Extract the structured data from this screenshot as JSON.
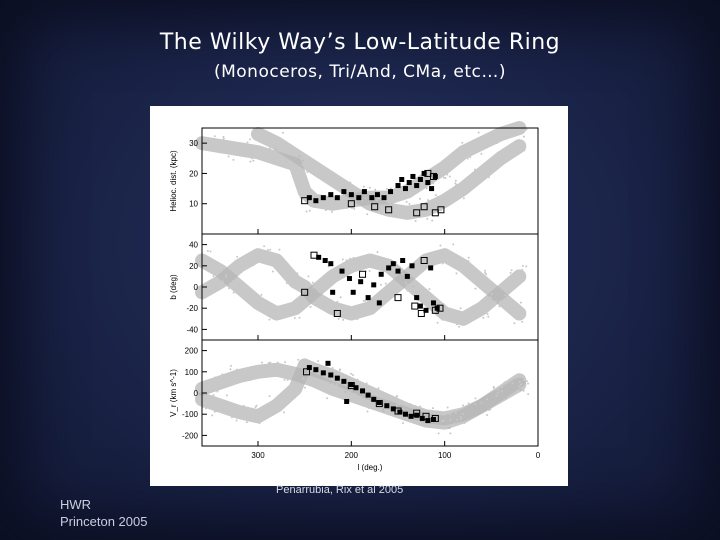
{
  "slide": {
    "title": "The Wilky Way’s Low-Latitude Ring",
    "subtitle": "(Monoceros, Tri/And, CMa, etc…)",
    "credit": "Penarrubia, Rix et al 2005",
    "footer_line1": "HWR",
    "footer_line2": "Princeton  2005"
  },
  "chart_data": {
    "type": "scatter",
    "x": {
      "label": "l (deg.)",
      "range": [
        360,
        0
      ],
      "ticks": [
        "300",
        "200",
        "100",
        "0"
      ],
      "tick_values": [
        300,
        200,
        100,
        0
      ]
    },
    "panels": [
      {
        "ylabel": "Helioc. dist. (kpc)",
        "ylim": [
          0,
          35
        ],
        "yticks": [
          10,
          20,
          30
        ],
        "model_band": [
          [
            360,
            30
          ],
          [
            340,
            29
          ],
          [
            320,
            28
          ],
          [
            300,
            27
          ],
          [
            280,
            25
          ],
          [
            260,
            23
          ],
          [
            250,
            14
          ],
          [
            240,
            11
          ],
          [
            220,
            10
          ],
          [
            200,
            11
          ],
          [
            180,
            12
          ],
          [
            160,
            12
          ],
          [
            140,
            14
          ],
          [
            120,
            18
          ],
          [
            100,
            22
          ],
          [
            80,
            27
          ],
          [
            60,
            30
          ],
          [
            40,
            33
          ],
          [
            20,
            35
          ]
        ],
        "model_band2": [
          [
            300,
            33
          ],
          [
            280,
            30
          ],
          [
            260,
            26
          ],
          [
            240,
            22
          ],
          [
            220,
            18
          ],
          [
            200,
            14
          ],
          [
            180,
            10
          ],
          [
            160,
            8
          ],
          [
            140,
            7
          ],
          [
            120,
            8
          ],
          [
            100,
            11
          ],
          [
            80,
            15
          ],
          [
            60,
            20
          ],
          [
            40,
            25
          ],
          [
            20,
            29
          ]
        ],
        "filled": [
          [
            245,
            12
          ],
          [
            238,
            11
          ],
          [
            230,
            12
          ],
          [
            222,
            13
          ],
          [
            215,
            12
          ],
          [
            208,
            14
          ],
          [
            200,
            13
          ],
          [
            192,
            12
          ],
          [
            186,
            14
          ],
          [
            178,
            12
          ],
          [
            172,
            13
          ],
          [
            165,
            12
          ],
          [
            158,
            14
          ],
          [
            150,
            16
          ],
          [
            146,
            18
          ],
          [
            142,
            15
          ],
          [
            138,
            17
          ],
          [
            134,
            19
          ],
          [
            130,
            16
          ],
          [
            126,
            18
          ],
          [
            122,
            20
          ],
          [
            118,
            17
          ],
          [
            114,
            15
          ],
          [
            110,
            19
          ]
        ],
        "open": [
          [
            250,
            11
          ],
          [
            200,
            10
          ],
          [
            175,
            9
          ],
          [
            160,
            8
          ],
          [
            130,
            7
          ],
          [
            122,
            9
          ],
          [
            110,
            7
          ],
          [
            104,
            8
          ],
          [
            118,
            20
          ],
          [
            112,
            19
          ]
        ]
      },
      {
        "ylabel": "b (deg)",
        "ylim": [
          -50,
          50
        ],
        "yticks": [
          40,
          20,
          0,
          -20,
          -40
        ],
        "model_band": [
          [
            360,
            -5
          ],
          [
            340,
            5
          ],
          [
            320,
            20
          ],
          [
            300,
            30
          ],
          [
            280,
            25
          ],
          [
            260,
            5
          ],
          [
            250,
            0
          ],
          [
            240,
            -10
          ],
          [
            220,
            -20
          ],
          [
            200,
            -25
          ],
          [
            180,
            -20
          ],
          [
            160,
            -5
          ],
          [
            140,
            10
          ],
          [
            120,
            25
          ],
          [
            100,
            30
          ],
          [
            80,
            20
          ],
          [
            60,
            5
          ],
          [
            40,
            -10
          ],
          [
            20,
            -25
          ]
        ],
        "model_band2": [
          [
            360,
            25
          ],
          [
            340,
            15
          ],
          [
            320,
            0
          ],
          [
            300,
            -15
          ],
          [
            280,
            -25
          ],
          [
            260,
            -20
          ],
          [
            240,
            -5
          ],
          [
            220,
            10
          ],
          [
            200,
            20
          ],
          [
            180,
            25
          ],
          [
            160,
            20
          ],
          [
            140,
            5
          ],
          [
            120,
            -10
          ],
          [
            100,
            -25
          ],
          [
            80,
            -30
          ],
          [
            60,
            -20
          ],
          [
            40,
            -5
          ],
          [
            20,
            10
          ]
        ],
        "filled": [
          [
            235,
            28
          ],
          [
            228,
            25
          ],
          [
            222,
            22
          ],
          [
            210,
            15
          ],
          [
            202,
            8
          ],
          [
            198,
            -5
          ],
          [
            190,
            5
          ],
          [
            182,
            -10
          ],
          [
            176,
            2
          ],
          [
            168,
            12
          ],
          [
            160,
            18
          ],
          [
            155,
            22
          ],
          [
            150,
            15
          ],
          [
            145,
            25
          ],
          [
            140,
            10
          ],
          [
            135,
            20
          ],
          [
            130,
            -10
          ],
          [
            126,
            -18
          ],
          [
            120,
            -22
          ],
          [
            115,
            18
          ],
          [
            112,
            -15
          ],
          [
            108,
            -20
          ],
          [
            220,
            -5
          ],
          [
            170,
            -15
          ]
        ],
        "open": [
          [
            250,
            -5
          ],
          [
            240,
            30
          ],
          [
            215,
            -25
          ],
          [
            188,
            12
          ],
          [
            150,
            -10
          ],
          [
            132,
            -18
          ],
          [
            125,
            -25
          ],
          [
            110,
            -22
          ],
          [
            105,
            -20
          ],
          [
            122,
            25
          ]
        ]
      },
      {
        "ylabel": "V_r (km s^-1)",
        "ylim": [
          -250,
          250
        ],
        "yticks": [
          200,
          100,
          0,
          -100,
          -200
        ],
        "model_band": [
          [
            360,
            -30
          ],
          [
            340,
            -60
          ],
          [
            320,
            -90
          ],
          [
            300,
            -110
          ],
          [
            280,
            -60
          ],
          [
            260,
            20
          ],
          [
            250,
            130
          ],
          [
            240,
            110
          ],
          [
            220,
            80
          ],
          [
            200,
            40
          ],
          [
            180,
            0
          ],
          [
            160,
            -40
          ],
          [
            140,
            -80
          ],
          [
            120,
            -110
          ],
          [
            100,
            -120
          ],
          [
            80,
            -100
          ],
          [
            60,
            -60
          ],
          [
            40,
            0
          ],
          [
            20,
            60
          ]
        ],
        "model_band2": [
          [
            360,
            20
          ],
          [
            340,
            50
          ],
          [
            320,
            80
          ],
          [
            300,
            100
          ],
          [
            280,
            110
          ],
          [
            260,
            90
          ],
          [
            240,
            60
          ],
          [
            220,
            20
          ],
          [
            200,
            -10
          ],
          [
            180,
            -40
          ],
          [
            160,
            -70
          ],
          [
            140,
            -100
          ],
          [
            120,
            -130
          ],
          [
            100,
            -140
          ],
          [
            80,
            -110
          ],
          [
            60,
            -60
          ],
          [
            40,
            -10
          ],
          [
            20,
            40
          ]
        ],
        "filled": [
          [
            245,
            120
          ],
          [
            238,
            110
          ],
          [
            230,
            95
          ],
          [
            222,
            85
          ],
          [
            215,
            70
          ],
          [
            208,
            55
          ],
          [
            200,
            40
          ],
          [
            195,
            25
          ],
          [
            188,
            10
          ],
          [
            182,
            -10
          ],
          [
            176,
            -30
          ],
          [
            170,
            -45
          ],
          [
            162,
            -60
          ],
          [
            155,
            -75
          ],
          [
            148,
            -90
          ],
          [
            142,
            -100
          ],
          [
            136,
            -110
          ],
          [
            130,
            -105
          ],
          [
            124,
            -120
          ],
          [
            118,
            -130
          ],
          [
            112,
            -125
          ],
          [
            205,
            -40
          ],
          [
            225,
            140
          ]
        ],
        "open": [
          [
            248,
            100
          ],
          [
            200,
            35
          ],
          [
            170,
            -50
          ],
          [
            150,
            -85
          ],
          [
            130,
            -95
          ],
          [
            120,
            -110
          ],
          [
            110,
            -120
          ]
        ]
      }
    ],
    "colors": {
      "model": "#b5b5b5",
      "points": "#000000"
    }
  }
}
